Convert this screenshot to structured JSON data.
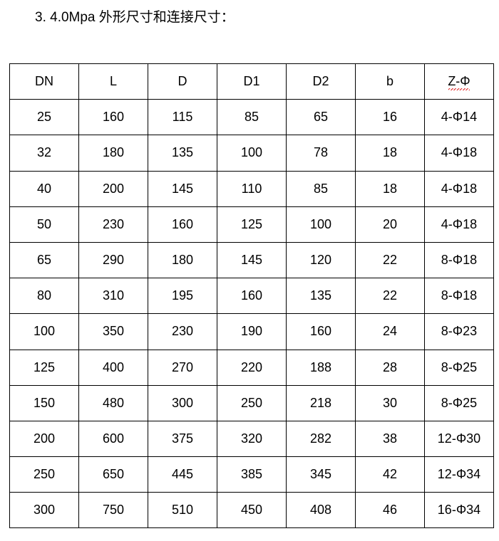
{
  "title": "3. 4.0Mpa 外形尺寸和连接尺寸：",
  "table": {
    "headers": [
      "DN",
      "L",
      "D",
      "D1",
      "D2",
      "b",
      "Z-Φ"
    ],
    "rows": [
      [
        "25",
        "160",
        "115",
        "85",
        "65",
        "16",
        "4-Φ14"
      ],
      [
        "32",
        "180",
        "135",
        "100",
        "78",
        "18",
        "4-Φ18"
      ],
      [
        "40",
        "200",
        "145",
        "110",
        "85",
        "18",
        "4-Φ18"
      ],
      [
        "50",
        "230",
        "160",
        "125",
        "100",
        "20",
        "4-Φ18"
      ],
      [
        "65",
        "290",
        "180",
        "145",
        "120",
        "22",
        "8-Φ18"
      ],
      [
        "80",
        "310",
        "195",
        "160",
        "135",
        "22",
        "8-Φ18"
      ],
      [
        "100",
        "350",
        "230",
        "190",
        "160",
        "24",
        "8-Φ23"
      ],
      [
        "125",
        "400",
        "270",
        "220",
        "188",
        "28",
        "8-Φ25"
      ],
      [
        "150",
        "480",
        "300",
        "250",
        "218",
        "30",
        "8-Φ25"
      ],
      [
        "200",
        "600",
        "375",
        "320",
        "282",
        "38",
        "12-Φ30"
      ],
      [
        "250",
        "650",
        "445",
        "385",
        "345",
        "42",
        "12-Φ34"
      ],
      [
        "300",
        "750",
        "510",
        "450",
        "408",
        "46",
        "16-Φ34"
      ]
    ]
  }
}
